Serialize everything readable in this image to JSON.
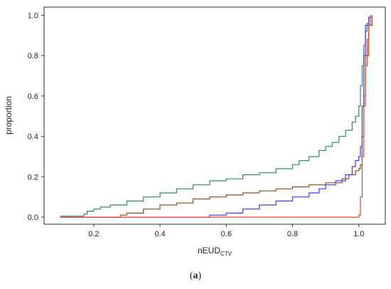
{
  "caption": {
    "open": "(",
    "letter": "a",
    "close": ")"
  },
  "chart_data": {
    "type": "line",
    "title": "",
    "xlabel": "nEUD",
    "xlabel_sub": "CTV",
    "ylabel": "proportion",
    "xlim": [
      0.05,
      1.08
    ],
    "ylim": [
      -0.035,
      1.04
    ],
    "x_ticks": [
      {
        "value": 0.2,
        "label": "0.2"
      },
      {
        "value": 0.4,
        "label": "0.4"
      },
      {
        "value": 0.6,
        "label": "0.6"
      },
      {
        "value": 0.8,
        "label": "0.8"
      },
      {
        "value": 1.0,
        "label": "1.0"
      }
    ],
    "y_ticks": [
      {
        "value": 0.0,
        "label": "0.0"
      },
      {
        "value": 0.2,
        "label": "0.2"
      },
      {
        "value": 0.4,
        "label": "0.4"
      },
      {
        "value": 0.6,
        "label": "0.6"
      },
      {
        "value": 0.8,
        "label": "0.8"
      },
      {
        "value": 1.0,
        "label": "1.0"
      }
    ],
    "grid": false,
    "legend": "none",
    "series": [
      {
        "color": "#2e8b72",
        "points": [
          [
            0.1,
            0.0
          ],
          [
            0.1,
            0.005
          ],
          [
            0.15,
            0.005
          ],
          [
            0.17,
            0.015
          ],
          [
            0.18,
            0.03
          ],
          [
            0.2,
            0.04
          ],
          [
            0.22,
            0.05
          ],
          [
            0.25,
            0.06
          ],
          [
            0.3,
            0.08
          ],
          [
            0.35,
            0.1
          ],
          [
            0.4,
            0.12
          ],
          [
            0.45,
            0.14
          ],
          [
            0.5,
            0.16
          ],
          [
            0.55,
            0.18
          ],
          [
            0.6,
            0.19
          ],
          [
            0.65,
            0.21
          ],
          [
            0.7,
            0.22
          ],
          [
            0.75,
            0.24
          ],
          [
            0.8,
            0.26
          ],
          [
            0.82,
            0.28
          ],
          [
            0.85,
            0.3
          ],
          [
            0.88,
            0.33
          ],
          [
            0.9,
            0.35
          ],
          [
            0.92,
            0.37
          ],
          [
            0.94,
            0.4
          ],
          [
            0.96,
            0.43
          ],
          [
            0.98,
            0.47
          ],
          [
            0.99,
            0.5
          ],
          [
            1.0,
            0.55
          ],
          [
            1.005,
            0.65
          ],
          [
            1.01,
            0.75
          ],
          [
            1.015,
            0.85
          ],
          [
            1.02,
            0.92
          ],
          [
            1.025,
            0.96
          ],
          [
            1.03,
            0.99
          ],
          [
            1.035,
            1.0
          ]
        ]
      },
      {
        "color": "#8b4a1a",
        "points": [
          [
            0.1,
            0.0
          ],
          [
            0.26,
            0.0
          ],
          [
            0.28,
            0.01
          ],
          [
            0.3,
            0.02
          ],
          [
            0.35,
            0.04
          ],
          [
            0.4,
            0.06
          ],
          [
            0.45,
            0.07
          ],
          [
            0.5,
            0.09
          ],
          [
            0.55,
            0.1
          ],
          [
            0.6,
            0.11
          ],
          [
            0.65,
            0.12
          ],
          [
            0.7,
            0.13
          ],
          [
            0.75,
            0.14
          ],
          [
            0.8,
            0.15
          ],
          [
            0.85,
            0.16
          ],
          [
            0.9,
            0.17
          ],
          [
            0.95,
            0.19
          ],
          [
            0.97,
            0.21
          ],
          [
            0.99,
            0.23
          ],
          [
            1.0,
            0.24
          ],
          [
            1.005,
            0.26
          ],
          [
            1.01,
            0.4
          ],
          [
            1.015,
            0.6
          ],
          [
            1.02,
            0.8
          ],
          [
            1.03,
            0.95
          ],
          [
            1.04,
            1.0
          ]
        ]
      },
      {
        "color": "#3a3aff",
        "points": [
          [
            0.1,
            0.0
          ],
          [
            0.52,
            0.0
          ],
          [
            0.55,
            0.01
          ],
          [
            0.6,
            0.02
          ],
          [
            0.65,
            0.04
          ],
          [
            0.7,
            0.06
          ],
          [
            0.75,
            0.08
          ],
          [
            0.8,
            0.1
          ],
          [
            0.85,
            0.12
          ],
          [
            0.88,
            0.14
          ],
          [
            0.9,
            0.16
          ],
          [
            0.93,
            0.18
          ],
          [
            0.96,
            0.21
          ],
          [
            0.98,
            0.25
          ],
          [
            0.99,
            0.28
          ],
          [
            1.0,
            0.3
          ],
          [
            1.005,
            0.35
          ],
          [
            1.01,
            0.55
          ],
          [
            1.015,
            0.8
          ],
          [
            1.02,
            0.95
          ],
          [
            1.03,
            0.99
          ],
          [
            1.04,
            1.0
          ]
        ]
      },
      {
        "color": "#e8402a",
        "points": [
          [
            0.1,
            0.0
          ],
          [
            0.995,
            0.0
          ],
          [
            1.0,
            0.01
          ],
          [
            1.005,
            0.1
          ],
          [
            1.01,
            0.3
          ],
          [
            1.015,
            0.55
          ],
          [
            1.02,
            0.75
          ],
          [
            1.025,
            0.88
          ],
          [
            1.03,
            0.95
          ],
          [
            1.035,
            0.99
          ],
          [
            1.04,
            1.0
          ]
        ]
      }
    ]
  }
}
